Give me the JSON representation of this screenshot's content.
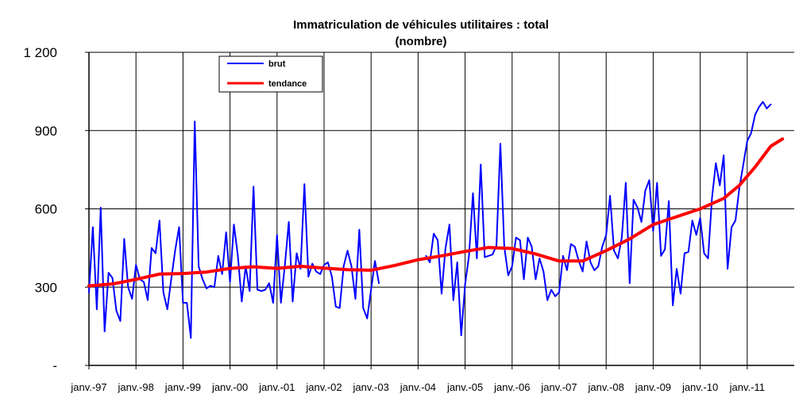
{
  "chart_data": {
    "type": "line",
    "title": "Immatriculation de véhicules utilitaires : total",
    "subtitle": "(nombre)",
    "xlabel": "",
    "ylabel": "",
    "ylim": [
      0,
      1200
    ],
    "yticks": [
      {
        "value": 0,
        "label": "-"
      },
      {
        "value": 300,
        "label": "300"
      },
      {
        "value": 600,
        "label": "600"
      },
      {
        "value": 900,
        "label": "900"
      },
      {
        "value": 1200,
        "label": "1 200"
      }
    ],
    "xticks": [
      "janv.-97",
      "janv.-98",
      "janv.-99",
      "janv.-00",
      "janv.-01",
      "janv.-02",
      "janv.-03",
      "janv.-04",
      "janv.-05",
      "janv.-06",
      "janv.-07",
      "janv.-08",
      "janv.-09",
      "janv.-10",
      "janv.-11"
    ],
    "x_unit": "months since janv.-97",
    "x_range": [
      0,
      180
    ],
    "grid": {
      "vertical": true,
      "horizontal": true
    },
    "legend": {
      "position": "top-left",
      "entries": [
        "brut",
        "tendance"
      ]
    },
    "series": [
      {
        "name": "brut",
        "color": "#0000ff",
        "segments": [
          [
            [
              0,
              280
            ],
            [
              1,
              530
            ],
            [
              2,
              215
            ],
            [
              3,
              605
            ],
            [
              4,
              130
            ],
            [
              5,
              355
            ],
            [
              6,
              335
            ],
            [
              7,
              210
            ],
            [
              8,
              170
            ],
            [
              9,
              485
            ],
            [
              10,
              300
            ],
            [
              11,
              255
            ],
            [
              12,
              385
            ],
            [
              13,
              330
            ],
            [
              14,
              320
            ],
            [
              15,
              250
            ],
            [
              16,
              450
            ],
            [
              17,
              430
            ],
            [
              18,
              555
            ],
            [
              19,
              280
            ],
            [
              20,
              215
            ],
            [
              21,
              330
            ],
            [
              22,
              440
            ],
            [
              23,
              530
            ],
            [
              24,
              240
            ],
            [
              25,
              240
            ],
            [
              26,
              105
            ],
            [
              27,
              935
            ],
            [
              28,
              380
            ],
            [
              29,
              330
            ],
            [
              30,
              295
            ],
            [
              31,
              305
            ],
            [
              32,
              300
            ],
            [
              33,
              420
            ],
            [
              34,
              350
            ],
            [
              35,
              510
            ],
            [
              36,
              320
            ],
            [
              37,
              540
            ],
            [
              38,
              420
            ],
            [
              39,
              245
            ],
            [
              40,
              380
            ],
            [
              41,
              285
            ],
            [
              42,
              685
            ],
            [
              43,
              290
            ],
            [
              44,
              285
            ],
            [
              45,
              290
            ],
            [
              46,
              315
            ],
            [
              47,
              240
            ],
            [
              48,
              500
            ],
            [
              49,
              240
            ],
            [
              50,
              385
            ],
            [
              51,
              550
            ],
            [
              52,
              245
            ],
            [
              53,
              430
            ],
            [
              54,
              370
            ],
            [
              55,
              695
            ],
            [
              56,
              340
            ],
            [
              57,
              390
            ],
            [
              58,
              360
            ],
            [
              59,
              350
            ],
            [
              60,
              385
            ],
            [
              61,
              395
            ],
            [
              62,
              340
            ],
            [
              63,
              225
            ],
            [
              64,
              220
            ],
            [
              65,
              380
            ],
            [
              66,
              440
            ],
            [
              67,
              380
            ],
            [
              68,
              255
            ],
            [
              69,
              520
            ],
            [
              70,
              220
            ],
            [
              71,
              180
            ],
            [
              72,
              290
            ],
            [
              73,
              400
            ],
            [
              74,
              315
            ]
          ],
          [
            [
              86,
              420
            ],
            [
              87,
              395
            ],
            [
              88,
              505
            ],
            [
              89,
              480
            ],
            [
              90,
              275
            ],
            [
              91,
              450
            ],
            [
              92,
              540
            ],
            [
              93,
              250
            ],
            [
              94,
              395
            ],
            [
              95,
              115
            ],
            [
              96,
              310
            ],
            [
              97,
              420
            ],
            [
              98,
              660
            ],
            [
              99,
              410
            ],
            [
              100,
              770
            ],
            [
              101,
              415
            ],
            [
              102,
              420
            ],
            [
              103,
              425
            ],
            [
              104,
              460
            ],
            [
              105,
              850
            ],
            [
              106,
              455
            ],
            [
              107,
              345
            ],
            [
              108,
              380
            ],
            [
              109,
              490
            ],
            [
              110,
              480
            ],
            [
              111,
              330
            ],
            [
              112,
              490
            ],
            [
              113,
              455
            ],
            [
              114,
              330
            ],
            [
              115,
              410
            ],
            [
              116,
              360
            ],
            [
              117,
              250
            ],
            [
              118,
              290
            ],
            [
              119,
              265
            ],
            [
              120,
              280
            ],
            [
              121,
              420
            ],
            [
              122,
              365
            ],
            [
              123,
              465
            ],
            [
              124,
              455
            ],
            [
              125,
              400
            ],
            [
              126,
              360
            ],
            [
              127,
              475
            ],
            [
              128,
              395
            ],
            [
              129,
              365
            ],
            [
              130,
              380
            ],
            [
              131,
              455
            ],
            [
              132,
              500
            ],
            [
              133,
              650
            ],
            [
              134,
              440
            ],
            [
              135,
              410
            ],
            [
              136,
              490
            ],
            [
              137,
              700
            ],
            [
              138,
              315
            ],
            [
              139,
              635
            ],
            [
              140,
              605
            ],
            [
              141,
              550
            ],
            [
              142,
              670
            ],
            [
              143,
              710
            ],
            [
              144,
              515
            ],
            [
              145,
              700
            ],
            [
              146,
              420
            ],
            [
              147,
              445
            ],
            [
              148,
              630
            ],
            [
              149,
              230
            ],
            [
              150,
              370
            ],
            [
              151,
              275
            ],
            [
              152,
              430
            ],
            [
              153,
              435
            ],
            [
              154,
              555
            ],
            [
              155,
              500
            ],
            [
              156,
              565
            ],
            [
              157,
              430
            ],
            [
              158,
              410
            ],
            [
              159,
              640
            ],
            [
              160,
              775
            ],
            [
              161,
              690
            ],
            [
              162,
              805
            ],
            [
              163,
              370
            ],
            [
              164,
              530
            ],
            [
              165,
              555
            ],
            [
              166,
              680
            ],
            [
              167,
              770
            ],
            [
              168,
              860
            ],
            [
              169,
              890
            ],
            [
              170,
              960
            ],
            [
              171,
              990
            ],
            [
              172,
              1010
            ],
            [
              173,
              985
            ],
            [
              174,
              1000
            ]
          ]
        ]
      },
      {
        "name": "tendance",
        "color": "#ff0000",
        "segments": [
          [
            [
              0,
              305
            ],
            [
              6,
              312
            ],
            [
              12,
              330
            ],
            [
              18,
              350
            ],
            [
              24,
              352
            ],
            [
              30,
              358
            ],
            [
              36,
              372
            ],
            [
              42,
              378
            ],
            [
              48,
              372
            ],
            [
              54,
              380
            ],
            [
              60,
              373
            ],
            [
              66,
              367
            ],
            [
              72,
              365
            ],
            [
              78,
              383
            ],
            [
              84,
              405
            ],
            [
              90,
              420
            ],
            [
              96,
              437
            ],
            [
              102,
              452
            ],
            [
              108,
              448
            ],
            [
              114,
              427
            ],
            [
              120,
              400
            ],
            [
              126,
              400
            ],
            [
              132,
              440
            ],
            [
              138,
              485
            ],
            [
              144,
              540
            ],
            [
              150,
              570
            ],
            [
              156,
              600
            ],
            [
              162,
              640
            ],
            [
              166,
              690
            ],
            [
              170,
              760
            ],
            [
              174,
              840
            ],
            [
              177,
              868
            ]
          ]
        ]
      }
    ]
  }
}
